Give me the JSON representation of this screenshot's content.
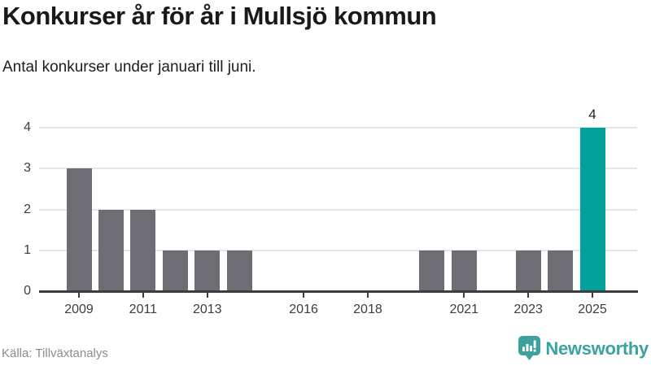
{
  "header": {
    "title": "Konkurser år för år i Mullsjö kommun",
    "subtitle": "Antal konkurser under januari till juni."
  },
  "chart_data": {
    "type": "bar",
    "title": "Konkurser år för år i Mullsjö kommun",
    "subtitle": "Antal konkurser under januari till juni.",
    "x": [
      2009,
      2010,
      2011,
      2012,
      2013,
      2014,
      2015,
      2016,
      2017,
      2018,
      2019,
      2020,
      2021,
      2022,
      2023,
      2024,
      2025
    ],
    "values": [
      3,
      2,
      2,
      1,
      1,
      1,
      0,
      0,
      0,
      0,
      0,
      1,
      1,
      0,
      1,
      1,
      4
    ],
    "highlight_x": 2025,
    "bar_label": {
      "x": 2025,
      "text": "4"
    },
    "x_tick_labels": [
      "2009",
      "2011",
      "2013",
      "2016",
      "2018",
      "2021",
      "2023",
      "2025"
    ],
    "y_ticks": [
      0,
      1,
      2,
      3,
      4
    ],
    "ylim": [
      0,
      4
    ],
    "grid": "horizontal",
    "legend": "none",
    "xlabel": "",
    "ylabel": ""
  },
  "colors": {
    "bar_default": "#6E6D73",
    "bar_highlight": "#00A29B",
    "axis": "#3C3C41",
    "gridline": "#E5E5E5",
    "tick_text": "#3C3C41",
    "title_text": "#191919",
    "source_text": "#8A8A91",
    "brand_teal": "#3BA29E"
  },
  "footer": {
    "source": "Källa: Tillväxtanalys",
    "brand": "Newsworthy",
    "logo_icon": "newsworthy-speech-bubble-chart-icon"
  }
}
